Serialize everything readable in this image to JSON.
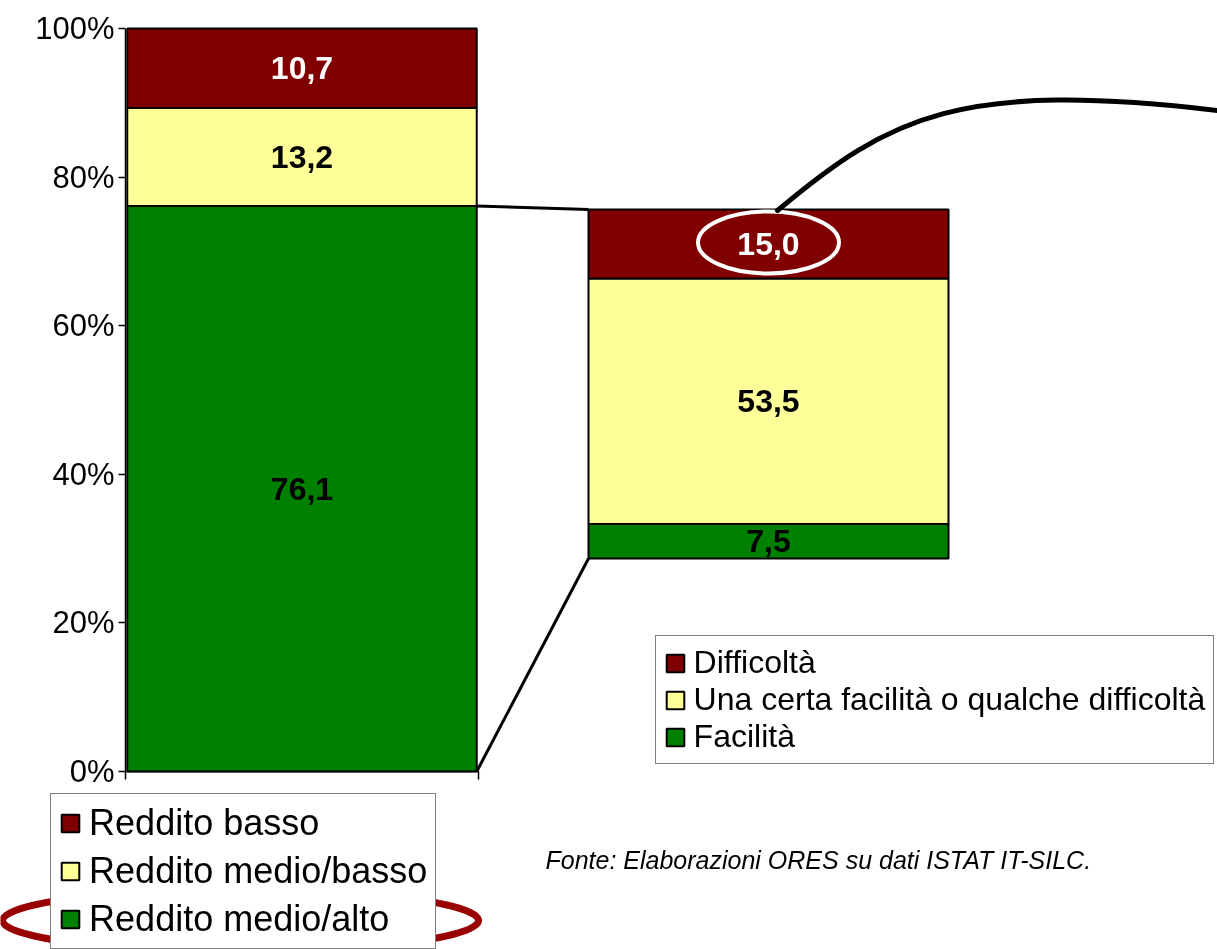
{
  "chart_data": [
    {
      "type": "bar",
      "stacked": true,
      "categories": [
        null
      ],
      "series": [
        {
          "name": "Reddito medio/alto",
          "color": "#008000",
          "values": [
            76.1
          ],
          "value_labels": [
            "76,1"
          ]
        },
        {
          "name": "Reddito medio/basso",
          "color": "#ffff99",
          "values": [
            13.2
          ],
          "value_labels": [
            "13,2"
          ]
        },
        {
          "name": "Reddito basso",
          "color": "#800000",
          "values": [
            10.7
          ],
          "value_labels": [
            "10,7"
          ]
        }
      ],
      "ylim": [
        0,
        100
      ],
      "yticks": [
        {
          "value": 0,
          "label": "0%"
        },
        {
          "value": 20,
          "label": "20%"
        },
        {
          "value": 40,
          "label": "40%"
        },
        {
          "value": 60,
          "label": "60%"
        },
        {
          "value": 80,
          "label": "80%"
        },
        {
          "value": 100,
          "label": "100%"
        }
      ],
      "tick_labels": "y",
      "legend": "bottom"
    },
    {
      "type": "bar",
      "stacked": true,
      "categories": [
        null
      ],
      "series": [
        {
          "name": "Facilità",
          "color": "#008000",
          "values": [
            7.5
          ],
          "value_labels": [
            "7,5"
          ]
        },
        {
          "name": "Una certa facilità o qualche difficoltà",
          "color": "#ffff99",
          "values": [
            53.5
          ],
          "value_labels": [
            "53,5"
          ]
        },
        {
          "name": "Difficoltà",
          "color": "#800000",
          "values": [
            15.0
          ],
          "value_labels": [
            "15,0"
          ]
        }
      ],
      "tick_labels": false,
      "legend": "bottom right",
      "annotations": [
        "Fonte: Elaborazioni ORES su dati ISTAT IT-SILC."
      ]
    }
  ]
}
